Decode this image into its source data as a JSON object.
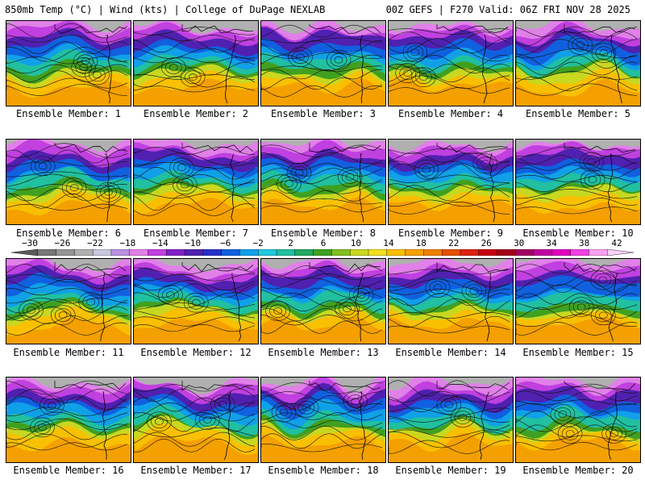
{
  "header": {
    "left": "850mb Temp (°C) | Wind (kts) | College of DuPage NEXLAB",
    "right": "00Z GEFS | F270 Valid: 06Z FRI NOV 28 2025"
  },
  "members": [
    {
      "label": "Ensemble Member: 1"
    },
    {
      "label": "Ensemble Member: 2"
    },
    {
      "label": "Ensemble Member: 3"
    },
    {
      "label": "Ensemble Member: 4"
    },
    {
      "label": "Ensemble Member: 5"
    },
    {
      "label": "Ensemble Member: 6"
    },
    {
      "label": "Ensemble Member: 7"
    },
    {
      "label": "Ensemble Member: 8"
    },
    {
      "label": "Ensemble Member: 9"
    },
    {
      "label": "Ensemble Member: 10"
    },
    {
      "label": "Ensemble Member: 11"
    },
    {
      "label": "Ensemble Member: 12"
    },
    {
      "label": "Ensemble Member: 13"
    },
    {
      "label": "Ensemble Member: 14"
    },
    {
      "label": "Ensemble Member: 15"
    },
    {
      "label": "Ensemble Member: 16"
    },
    {
      "label": "Ensemble Member: 17"
    },
    {
      "label": "Ensemble Member: 18"
    },
    {
      "label": "Ensemble Member: 19"
    },
    {
      "label": "Ensemble Member: 20"
    }
  ],
  "colorbar": {
    "labels": [
      "−30",
      "−26",
      "−22",
      "−18",
      "−14",
      "−10",
      "−6",
      "−2",
      "2",
      "6",
      "10",
      "14",
      "18",
      "22",
      "26",
      "30",
      "34",
      "38",
      "42"
    ],
    "colors": [
      "#5a5a5a",
      "#777777",
      "#949494",
      "#b0b0b0",
      "#c8c8e0",
      "#b890e0",
      "#e080e8",
      "#c040e0",
      "#8020c8",
      "#5020b0",
      "#2830c8",
      "#1060e0",
      "#10a0e8",
      "#20c8e0",
      "#20c0a0",
      "#20a860",
      "#40a020",
      "#80c020",
      "#c8d820",
      "#f0e020",
      "#f8c000",
      "#f4a000",
      "#f08000",
      "#e85000",
      "#e02010",
      "#c80010",
      "#a00018",
      "#a00060",
      "#c000a0",
      "#e000c0",
      "#f040e0",
      "#f8a0f0",
      "#f8d0f8"
    ]
  }
}
